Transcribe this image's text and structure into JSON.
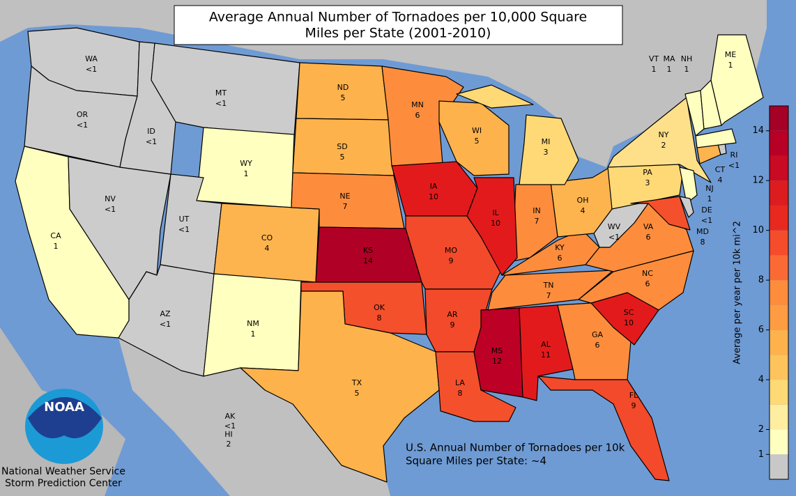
{
  "title": "Average Annual Number of Tornadoes per 10,000 Square Miles per State (2001-2010)",
  "footer": "U.S. Annual Number of Tornadoes per 10k Square Miles per State: ~4",
  "agency": {
    "logo": "NOAA",
    "line1": "National Weather Service",
    "line2": "Storm Prediction Center"
  },
  "insets": [
    {
      "abbr": "AK",
      "value": "<1"
    },
    {
      "abbr": "HI",
      "value": "2"
    }
  ],
  "legend": {
    "label": "Average per year per 10k mi^2",
    "lim": [
      0,
      15
    ],
    "bins": [
      0,
      1,
      2,
      3,
      4,
      5,
      6,
      7,
      8,
      9,
      10,
      11,
      12,
      13,
      14,
      15
    ],
    "colors": [
      "#c8c8c8",
      "#ffffc0",
      "#ffeda0",
      "#fed976",
      "#fec35c",
      "#fdb24c",
      "#fd9c42",
      "#fd8d3c",
      "#fb6a34",
      "#f54c2b",
      "#e8291f",
      "#dc1c1f",
      "#c80a22",
      "#b80026",
      "#a50026"
    ],
    "ticks": [
      1,
      2,
      4,
      6,
      8,
      10,
      12,
      14
    ]
  },
  "states": [
    {
      "abbr": "WA",
      "value": "<1",
      "color": "#cccccc"
    },
    {
      "abbr": "OR",
      "value": "<1",
      "color": "#cccccc"
    },
    {
      "abbr": "CA",
      "value": "1",
      "color": "#ffffc0"
    },
    {
      "abbr": "NV",
      "value": "<1",
      "color": "#cccccc"
    },
    {
      "abbr": "ID",
      "value": "<1",
      "color": "#cccccc"
    },
    {
      "abbr": "MT",
      "value": "<1",
      "color": "#cccccc"
    },
    {
      "abbr": "WY",
      "value": "1",
      "color": "#ffffc0"
    },
    {
      "abbr": "UT",
      "value": "<1",
      "color": "#cccccc"
    },
    {
      "abbr": "AZ",
      "value": "<1",
      "color": "#cccccc"
    },
    {
      "abbr": "NM",
      "value": "1",
      "color": "#ffffc0"
    },
    {
      "abbr": "CO",
      "value": "4",
      "color": "#fdb44e"
    },
    {
      "abbr": "ND",
      "value": "5",
      "color": "#fdb24c"
    },
    {
      "abbr": "SD",
      "value": "5",
      "color": "#fdb24c"
    },
    {
      "abbr": "NE",
      "value": "7",
      "color": "#fd8d3c"
    },
    {
      "abbr": "KS",
      "value": "14",
      "color": "#b10026"
    },
    {
      "abbr": "OK",
      "value": "8",
      "color": "#f4502c"
    },
    {
      "abbr": "TX",
      "value": "5",
      "color": "#fdb24c"
    },
    {
      "abbr": "MN",
      "value": "6",
      "color": "#fd8d3c"
    },
    {
      "abbr": "IA",
      "value": "10",
      "color": "#e31a1c"
    },
    {
      "abbr": "MO",
      "value": "9",
      "color": "#f24a2a"
    },
    {
      "abbr": "AR",
      "value": "9",
      "color": "#f24a2a"
    },
    {
      "abbr": "LA",
      "value": "8",
      "color": "#f4502c"
    },
    {
      "abbr": "MS",
      "value": "12",
      "color": "#bd0026"
    },
    {
      "abbr": "AL",
      "value": "11",
      "color": "#e31a1c"
    },
    {
      "abbr": "GA",
      "value": "6",
      "color": "#fd8d3c"
    },
    {
      "abbr": "FL",
      "value": "9",
      "color": "#f24a2a"
    },
    {
      "abbr": "SC",
      "value": "10",
      "color": "#e31a1c"
    },
    {
      "abbr": "NC",
      "value": "6",
      "color": "#fd8d3c"
    },
    {
      "abbr": "TN",
      "value": "7",
      "color": "#fd8d3c"
    },
    {
      "abbr": "KY",
      "value": "6",
      "color": "#fd8d3c"
    },
    {
      "abbr": "VA",
      "value": "6",
      "color": "#fd8d3c"
    },
    {
      "abbr": "WV",
      "value": "<1",
      "color": "#cccccc"
    },
    {
      "abbr": "OH",
      "value": "4",
      "color": "#fdb44e"
    },
    {
      "abbr": "IN",
      "value": "7",
      "color": "#fd8d3c"
    },
    {
      "abbr": "IL",
      "value": "10",
      "color": "#e31a1c"
    },
    {
      "abbr": "WI",
      "value": "5",
      "color": "#fdb24c"
    },
    {
      "abbr": "MI",
      "value": "3",
      "color": "#fed976"
    },
    {
      "abbr": "PA",
      "value": "3",
      "color": "#fed976"
    },
    {
      "abbr": "NY",
      "value": "2",
      "color": "#ffe08a"
    },
    {
      "abbr": "NJ",
      "value": "1",
      "color": "#ffffc0"
    },
    {
      "abbr": "MD",
      "value": "8",
      "color": "#f4502c"
    },
    {
      "abbr": "DE",
      "value": "<1",
      "color": "#cccccc"
    },
    {
      "abbr": "CT",
      "value": "4",
      "color": "#fdb44e"
    },
    {
      "abbr": "RI",
      "value": "<1",
      "color": "#cccccc"
    },
    {
      "abbr": "MA",
      "value": "1",
      "color": "#ffffc0"
    },
    {
      "abbr": "VT",
      "value": "1",
      "color": "#ffffc0"
    },
    {
      "abbr": "NH",
      "value": "1",
      "color": "#ffffc0"
    },
    {
      "abbr": "ME",
      "value": "1",
      "color": "#ffffc0"
    }
  ]
}
